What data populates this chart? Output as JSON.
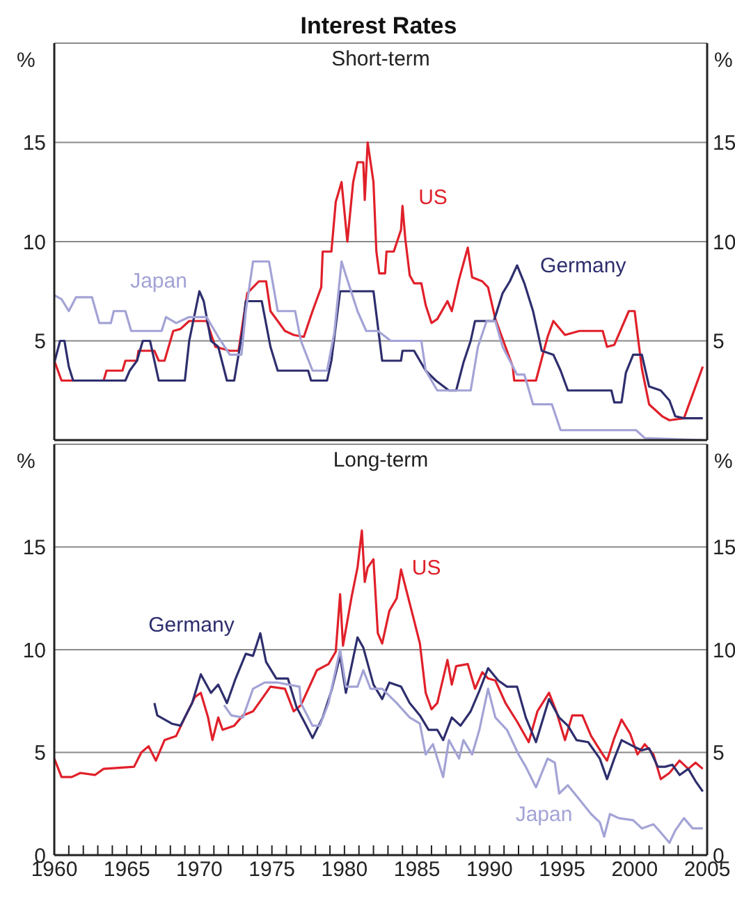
{
  "chart_data": [
    {
      "type": "line",
      "title": "Interest Rates",
      "subtitle": "Short-term",
      "ylabel": "%",
      "y2label": "%",
      "xlim": [
        1960,
        2005
      ],
      "ylim": [
        0,
        20
      ],
      "yticks": [
        5,
        10,
        15
      ],
      "y2lim": [
        0,
        20
      ],
      "y2ticks": [
        5,
        10,
        15
      ],
      "tick_labels": "y",
      "grid": "y",
      "series": [
        {
          "name": "US",
          "color": "#e0202a",
          "x": [
            1960.0,
            1960.5,
            1961.2,
            1963.4,
            1963.6,
            1964.7,
            1964.9,
            1965.7,
            1965.8,
            1966.9,
            1967.2,
            1967.6,
            1968.2,
            1968.7,
            1969.3,
            1970.5,
            1971.1,
            1972.1,
            1972.7,
            1973.3,
            1974.1,
            1974.6,
            1974.9,
            1975.4,
            1975.9,
            1976.5,
            1977.2,
            1977.8,
            1978.4,
            1978.5,
            1979.1,
            1979.4,
            1979.8,
            1980.2,
            1980.6,
            1980.9,
            1981.3,
            1981.4,
            1981.6,
            1982.0,
            1982.2,
            1982.4,
            1982.8,
            1982.9,
            1983.4,
            1983.9,
            1984.0,
            1984.2,
            1984.5,
            1984.8,
            1985.3,
            1985.6,
            1986.0,
            1986.4,
            1987.1,
            1987.4,
            1987.9,
            1988.5,
            1988.8,
            1989.5,
            1989.9,
            1990.4,
            1991.1,
            1991.6,
            1991.7,
            1993.2,
            1994.0,
            1994.4,
            1995.2,
            1996.2,
            1997.8,
            1998.1,
            1998.6,
            1999.6,
            2000.0,
            2000.5,
            2001.0,
            2001.9,
            2002.4,
            2003.4,
            2003.9,
            2004.7
          ],
          "values": [
            4.0,
            3.0,
            3.0,
            3.0,
            3.5,
            3.5,
            4.0,
            4.0,
            4.5,
            4.5,
            4.0,
            4.0,
            5.5,
            5.6,
            6.0,
            6.0,
            4.7,
            4.5,
            4.5,
            7.4,
            8.0,
            8.0,
            6.5,
            6.0,
            5.5,
            5.3,
            5.2,
            6.5,
            7.7,
            9.5,
            9.5,
            12.0,
            13.0,
            10.0,
            13.0,
            14.0,
            14.0,
            12.1,
            15.0,
            13.0,
            9.5,
            8.4,
            8.4,
            9.5,
            9.5,
            10.6,
            11.8,
            10.1,
            8.3,
            7.9,
            7.9,
            6.8,
            5.9,
            6.1,
            7.0,
            6.5,
            8.1,
            9.7,
            8.2,
            8.0,
            7.7,
            6.1,
            4.7,
            3.7,
            3.0,
            3.0,
            5.2,
            6.0,
            5.3,
            5.5,
            5.5,
            4.7,
            4.8,
            6.5,
            6.5,
            3.6,
            1.8,
            1.2,
            1.0,
            1.1,
            2.1,
            3.7
          ]
        },
        {
          "name": "Germany",
          "color": "#2e2e6e",
          "x": [
            1960.0,
            1960.4,
            1960.7,
            1961.0,
            1961.3,
            1964.9,
            1965.2,
            1965.7,
            1966.1,
            1966.6,
            1967.2,
            1969.0,
            1969.3,
            1970.0,
            1970.3,
            1970.8,
            1971.3,
            1971.9,
            1972.4,
            1973.0,
            1973.2,
            1974.3,
            1974.9,
            1975.4,
            1977.5,
            1977.7,
            1978.8,
            1979.1,
            1979.7,
            1982.0,
            1982.6,
            1983.9,
            1984.0,
            1984.8,
            1985.2,
            1985.6,
            1986.3,
            1987.2,
            1987.7,
            1988.2,
            1988.7,
            1989.0,
            1990.3,
            1990.9,
            1991.4,
            1991.9,
            1992.4,
            1993.0,
            1993.6,
            1994.4,
            1994.9,
            1995.4,
            1998.4,
            1998.6,
            1999.1,
            1999.4,
            1999.9,
            2000.5,
            2001.0,
            2001.8,
            2002.4,
            2002.8,
            2003.4,
            2004.7
          ],
          "values": [
            3.9,
            5.0,
            5.0,
            3.7,
            3.0,
            3.0,
            3.5,
            4.0,
            5.0,
            5.0,
            3.0,
            3.0,
            5.0,
            7.5,
            7.0,
            5.0,
            4.7,
            3.0,
            3.0,
            5.6,
            7.0,
            7.0,
            4.7,
            3.5,
            3.5,
            3.0,
            3.0,
            4.0,
            7.5,
            7.5,
            4.0,
            4.0,
            4.5,
            4.5,
            4.0,
            3.5,
            3.0,
            2.5,
            2.5,
            3.9,
            5.0,
            6.0,
            6.0,
            7.4,
            8.0,
            8.8,
            7.9,
            6.5,
            4.5,
            4.3,
            3.5,
            2.5,
            2.5,
            1.9,
            1.9,
            3.4,
            4.3,
            4.3,
            2.7,
            2.5,
            2.0,
            1.2,
            1.1,
            1.1
          ]
        },
        {
          "name": "Japan",
          "color": "#a3a3d6",
          "x": [
            1960.0,
            1960.5,
            1961.0,
            1961.5,
            1962.6,
            1963.1,
            1963.9,
            1964.1,
            1964.9,
            1965.3,
            1967.4,
            1967.7,
            1968.4,
            1969.3,
            1970.5,
            1971.3,
            1972.1,
            1972.9,
            1973.2,
            1973.7,
            1974.8,
            1975.4,
            1976.6,
            1977.0,
            1977.8,
            1978.8,
            1979.3,
            1979.8,
            1980.1,
            1980.9,
            1981.5,
            1982.3,
            1983.2,
            1985.3,
            1985.6,
            1986.4,
            1988.7,
            1989.2,
            1989.8,
            1990.4,
            1990.9,
            1991.9,
            1992.4,
            1993.0,
            1994.3,
            1994.9,
            2000.1,
            2000.7,
            2004.7
          ],
          "values": [
            7.3,
            7.1,
            6.5,
            7.2,
            7.2,
            5.9,
            5.9,
            6.5,
            6.5,
            5.5,
            5.5,
            6.2,
            5.9,
            6.2,
            6.2,
            5.2,
            4.3,
            4.3,
            6.5,
            9.0,
            9.0,
            6.5,
            6.5,
            5.0,
            3.5,
            3.5,
            5.4,
            9.0,
            8.3,
            6.5,
            5.5,
            5.5,
            5.0,
            5.0,
            3.5,
            2.5,
            2.5,
            4.7,
            6.0,
            6.0,
            4.7,
            3.3,
            3.3,
            1.8,
            1.8,
            0.5,
            0.5,
            0.1,
            0.0
          ]
        }
      ]
    },
    {
      "type": "line",
      "title": "Long-term",
      "ylabel": "%",
      "y2label": "%",
      "xlim": [
        1960,
        2005
      ],
      "ylim": [
        0,
        20
      ],
      "yticks": [
        0,
        5,
        10,
        15
      ],
      "y2lim": [
        0,
        20
      ],
      "y2ticks": [
        0,
        5,
        10,
        15
      ],
      "grid": "y",
      "xticks": [
        1960,
        {
          "value": 1961,
          "label": null
        },
        {
          "value": 1962,
          "label": null
        },
        {
          "value": 1963,
          "label": null
        },
        {
          "value": 1964,
          "label": null
        },
        1965,
        {
          "value": 1966,
          "label": null
        },
        {
          "value": 1967,
          "label": null
        },
        {
          "value": 1968,
          "label": null
        },
        {
          "value": 1969,
          "label": null
        },
        1970,
        {
          "value": 1971,
          "label": null
        },
        {
          "value": 1972,
          "label": null
        },
        {
          "value": 1973,
          "label": null
        },
        {
          "value": 1974,
          "label": null
        },
        1975,
        {
          "value": 1976,
          "label": null
        },
        {
          "value": 1977,
          "label": null
        },
        {
          "value": 1978,
          "label": null
        },
        {
          "value": 1979,
          "label": null
        },
        1980,
        {
          "value": 1981,
          "label": null
        },
        {
          "value": 1982,
          "label": null
        },
        {
          "value": 1983,
          "label": null
        },
        {
          "value": 1984,
          "label": null
        },
        1985,
        {
          "value": 1986,
          "label": null
        },
        {
          "value": 1987,
          "label": null
        },
        {
          "value": 1988,
          "label": null
        },
        {
          "value": 1989,
          "label": null
        },
        1990,
        {
          "value": 1991,
          "label": null
        },
        {
          "value": 1992,
          "label": null
        },
        {
          "value": 1993,
          "label": null
        },
        {
          "value": 1994,
          "label": null
        },
        1995,
        {
          "value": 1996,
          "label": null
        },
        {
          "value": 1997,
          "label": null
        },
        {
          "value": 1998,
          "label": null
        },
        {
          "value": 1999,
          "label": null
        },
        2000,
        {
          "value": 2001,
          "label": null
        },
        {
          "value": 2002,
          "label": null
        },
        {
          "value": 2003,
          "label": null
        },
        {
          "value": 2004,
          "label": null
        },
        2005
      ],
      "series": [
        {
          "name": "US",
          "color": "#e0202a",
          "x": [
            1960.0,
            1960.5,
            1961.2,
            1961.8,
            1962.8,
            1963.4,
            1965.5,
            1966.0,
            1966.5,
            1967.0,
            1967.6,
            1968.4,
            1969.0,
            1969.7,
            1970.1,
            1970.6,
            1970.9,
            1971.3,
            1971.6,
            1972.4,
            1973.0,
            1973.7,
            1974.3,
            1974.9,
            1975.9,
            1976.5,
            1977.0,
            1978.1,
            1978.9,
            1979.4,
            1979.7,
            1979.9,
            1980.5,
            1980.9,
            1981.2,
            1981.4,
            1981.6,
            1982.0,
            1982.3,
            1982.6,
            1983.1,
            1983.6,
            1983.9,
            1984.3,
            1984.7,
            1985.2,
            1985.6,
            1986.0,
            1986.4,
            1987.1,
            1987.4,
            1987.7,
            1988.5,
            1989.0,
            1989.5,
            1989.9,
            1990.4,
            1991.1,
            1991.9,
            1992.7,
            1993.3,
            1994.1,
            1994.6,
            1995.2,
            1995.7,
            1996.4,
            1997.0,
            1997.8,
            1998.1,
            1998.6,
            1999.1,
            1999.7,
            2000.2,
            2000.7,
            2001.3,
            2001.8,
            2002.4,
            2003.1,
            2003.7,
            2004.2,
            2004.7
          ],
          "values": [
            4.7,
            3.8,
            3.8,
            4.0,
            3.9,
            4.2,
            4.3,
            5.0,
            5.3,
            4.6,
            5.6,
            5.8,
            6.7,
            7.7,
            7.9,
            6.7,
            5.6,
            6.7,
            6.1,
            6.3,
            6.8,
            7.0,
            7.6,
            8.2,
            8.1,
            7.0,
            7.3,
            9.0,
            9.3,
            9.9,
            12.7,
            10.2,
            12.6,
            14.0,
            15.8,
            13.3,
            14.0,
            14.4,
            10.8,
            10.3,
            11.9,
            12.5,
            13.9,
            12.8,
            11.7,
            10.3,
            7.9,
            7.1,
            7.4,
            9.5,
            8.3,
            9.2,
            9.3,
            8.1,
            8.9,
            8.6,
            8.5,
            7.4,
            6.5,
            5.5,
            7.0,
            7.9,
            7.0,
            5.6,
            6.8,
            6.8,
            5.8,
            4.9,
            4.6,
            5.7,
            6.6,
            5.9,
            4.9,
            5.4,
            4.9,
            3.7,
            4.0,
            4.6,
            4.2,
            4.5,
            4.2
          ]
        },
        {
          "name": "Germany",
          "color": "#2e2e6e",
          "x": [
            1966.9,
            1967.1,
            1968.1,
            1968.7,
            1969.5,
            1970.1,
            1970.8,
            1971.3,
            1971.9,
            1972.5,
            1973.2,
            1973.7,
            1974.2,
            1974.6,
            1975.3,
            1976.1,
            1976.7,
            1977.3,
            1977.8,
            1978.5,
            1979.1,
            1979.7,
            1980.1,
            1980.9,
            1981.3,
            1982.0,
            1982.6,
            1983.1,
            1983.9,
            1984.5,
            1985.2,
            1985.8,
            1986.4,
            1986.8,
            1987.4,
            1988.0,
            1988.7,
            1989.3,
            1989.9,
            1990.6,
            1991.2,
            1991.9,
            1992.5,
            1993.2,
            1994.1,
            1994.8,
            1995.4,
            1996.0,
            1996.8,
            1997.6,
            1998.1,
            1998.6,
            1999.1,
            1999.9,
            2000.5,
            2001.0,
            2001.6,
            2002.1,
            2002.6,
            2003.1,
            2003.7,
            2004.2,
            2004.7
          ],
          "values": [
            7.4,
            6.8,
            6.4,
            6.3,
            7.4,
            8.8,
            7.9,
            8.3,
            7.4,
            8.6,
            9.8,
            9.7,
            10.8,
            9.4,
            8.6,
            8.6,
            7.2,
            6.4,
            5.7,
            6.7,
            8.0,
            9.7,
            7.9,
            10.6,
            10.1,
            8.3,
            7.6,
            8.4,
            8.2,
            7.4,
            6.8,
            6.1,
            6.1,
            5.6,
            6.7,
            6.3,
            7.0,
            8.0,
            9.1,
            8.5,
            8.2,
            8.2,
            6.7,
            5.5,
            7.6,
            6.7,
            6.3,
            5.6,
            5.5,
            4.7,
            3.7,
            4.7,
            5.6,
            5.3,
            5.1,
            5.2,
            4.3,
            4.3,
            4.4,
            3.9,
            4.2,
            3.6,
            3.1
          ]
        },
        {
          "name": "Japan",
          "color": "#a3a3d6",
          "x": [
            1971.7,
            1972.2,
            1973.0,
            1973.7,
            1974.5,
            1975.4,
            1976.9,
            1977.0,
            1977.8,
            1978.3,
            1978.9,
            1979.7,
            1980.1,
            1980.9,
            1981.3,
            1981.8,
            1982.6,
            1983.6,
            1984.5,
            1985.2,
            1985.6,
            1986.1,
            1986.8,
            1987.2,
            1987.9,
            1988.2,
            1988.8,
            1989.3,
            1989.9,
            1990.4,
            1991.2,
            1992.0,
            1992.5,
            1993.2,
            1994.0,
            1994.5,
            1994.8,
            1995.4,
            1996.2,
            1997.0,
            1997.6,
            1997.9,
            1998.3,
            1998.9,
            1999.9,
            2000.5,
            2001.3,
            2001.8,
            2002.4,
            2002.8,
            2003.4,
            2004.0,
            2004.7
          ],
          "values": [
            7.3,
            6.8,
            6.7,
            8.1,
            8.4,
            8.4,
            8.2,
            7.4,
            6.3,
            6.3,
            7.4,
            10.0,
            8.2,
            8.2,
            9.0,
            8.1,
            8.1,
            7.4,
            6.7,
            6.4,
            4.9,
            5.4,
            3.8,
            5.6,
            4.7,
            5.6,
            4.9,
            6.1,
            8.1,
            6.7,
            6.1,
            4.9,
            4.3,
            3.3,
            4.7,
            4.5,
            3.0,
            3.4,
            2.7,
            2.0,
            1.6,
            0.9,
            2.0,
            1.8,
            1.7,
            1.3,
            1.5,
            1.1,
            0.6,
            1.2,
            1.8,
            1.3,
            1.3
          ]
        }
      ]
    }
  ]
}
